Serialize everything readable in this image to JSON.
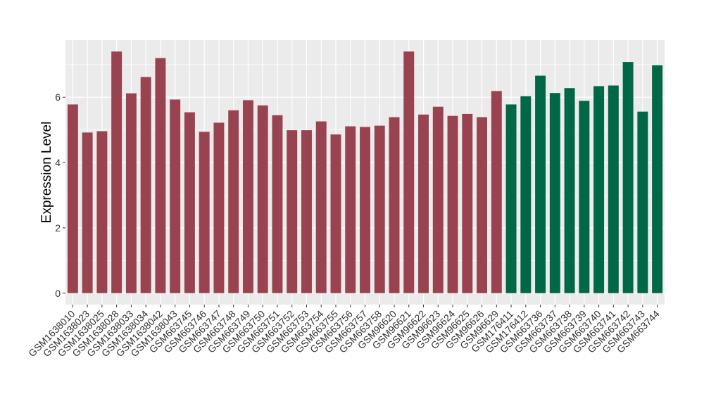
{
  "chart_data": {
    "type": "bar",
    "title": "",
    "xlabel": "",
    "ylabel": "Expression Level",
    "ylim": [
      -0.35,
      7.75
    ],
    "yticks": [
      0,
      2,
      4,
      6
    ],
    "grid": true,
    "legend": "none",
    "colors": {
      "group_a": "#9a4350",
      "group_b": "#006747",
      "panel": "#ebebeb",
      "grid": "#ffffff"
    },
    "categories": [
      "GSM1638010",
      "GSM1638023",
      "GSM1638025",
      "GSM1638028",
      "GSM1638033",
      "GSM1638034",
      "GSM1638042",
      "GSM1638043",
      "GSM663745",
      "GSM663746",
      "GSM663747",
      "GSM663748",
      "GSM663749",
      "GSM663750",
      "GSM663751",
      "GSM663752",
      "GSM663753",
      "GSM663754",
      "GSM663755",
      "GSM663756",
      "GSM663757",
      "GSM663758",
      "GSM96620",
      "GSM96621",
      "GSM96622",
      "GSM96623",
      "GSM96624",
      "GSM96625",
      "GSM96626",
      "GSM96629",
      "GSM176411",
      "GSM176412",
      "GSM663736",
      "GSM663737",
      "GSM663738",
      "GSM663739",
      "GSM663740",
      "GSM663741",
      "GSM663742",
      "GSM663743",
      "GSM663744"
    ],
    "values": [
      5.78,
      4.92,
      4.96,
      7.4,
      6.12,
      6.62,
      7.2,
      5.93,
      5.54,
      4.94,
      5.22,
      5.6,
      5.91,
      5.75,
      5.45,
      4.99,
      4.99,
      5.26,
      4.86,
      5.11,
      5.09,
      5.13,
      5.39,
      7.4,
      5.47,
      5.71,
      5.43,
      5.49,
      5.39,
      6.19,
      5.78,
      6.03,
      6.66,
      6.13,
      6.28,
      5.89,
      6.34,
      6.36,
      7.08,
      5.56,
      6.98
    ],
    "groups": [
      "a",
      "a",
      "a",
      "a",
      "a",
      "a",
      "a",
      "a",
      "a",
      "a",
      "a",
      "a",
      "a",
      "a",
      "a",
      "a",
      "a",
      "a",
      "a",
      "a",
      "a",
      "a",
      "a",
      "a",
      "a",
      "a",
      "a",
      "a",
      "a",
      "a",
      "b",
      "b",
      "b",
      "b",
      "b",
      "b",
      "b",
      "b",
      "b",
      "b",
      "b"
    ]
  }
}
